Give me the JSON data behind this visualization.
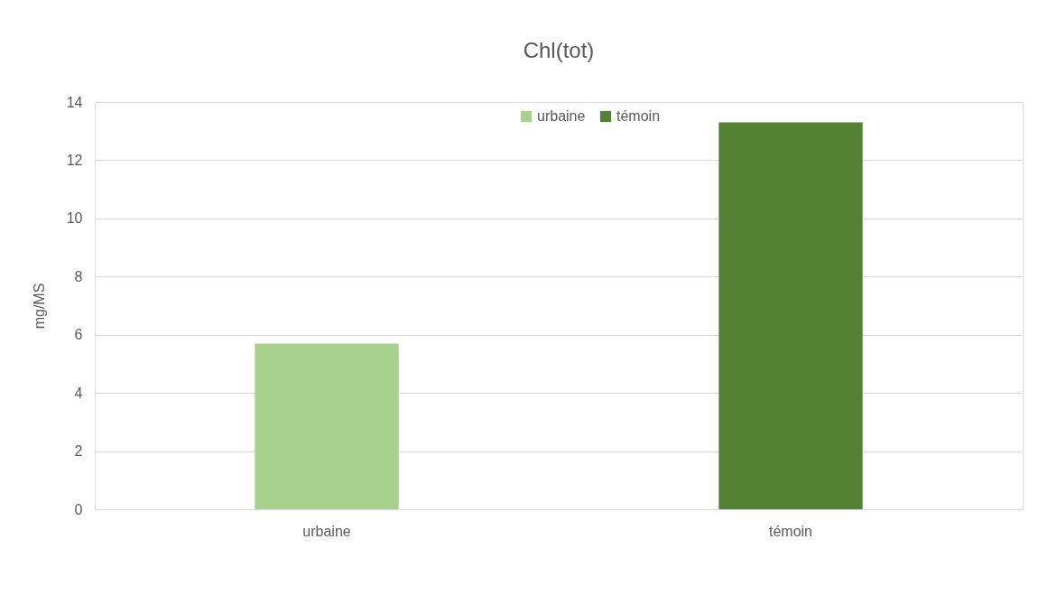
{
  "chart_data": {
    "type": "bar",
    "title": "Chl(tot)",
    "ylabel": "mg/MS",
    "categories": [
      "urbaine",
      "témoin"
    ],
    "series": [
      {
        "name": "urbaine",
        "color": "#a9d18e",
        "values": [
          5.7,
          null
        ]
      },
      {
        "name": "témoin",
        "color": "#548235",
        "values": [
          null,
          13.3
        ]
      }
    ],
    "ylim": [
      0,
      14
    ],
    "yticks": [
      0,
      2,
      4,
      6,
      8,
      10,
      12,
      14
    ],
    "grid": "y",
    "legend": "top"
  }
}
